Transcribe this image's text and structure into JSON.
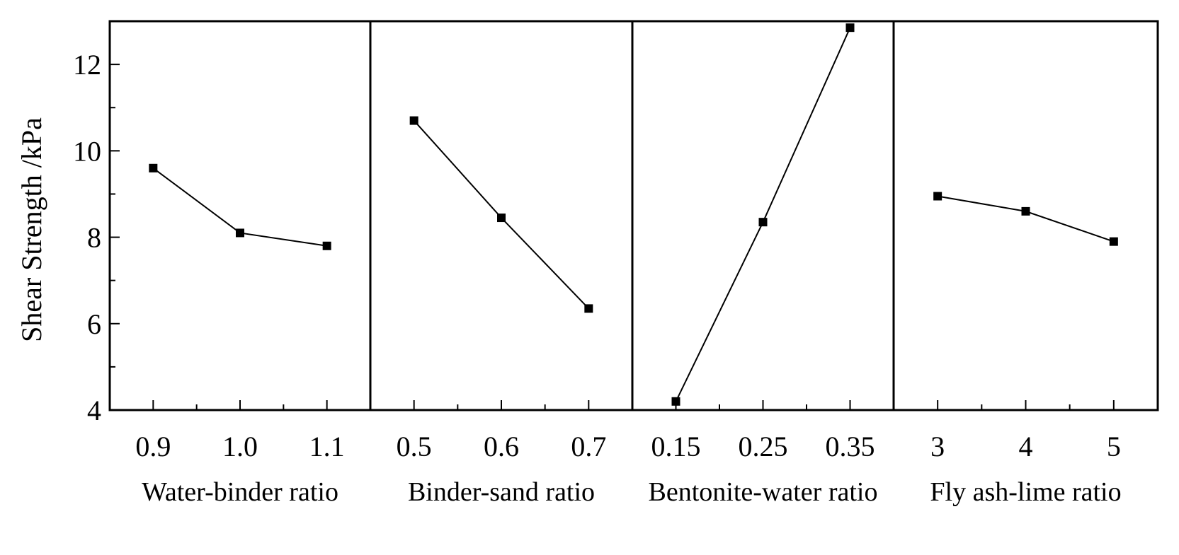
{
  "chart_data": {
    "type": "line",
    "ylabel": "Shear Strength /kPa",
    "ylim": [
      4,
      13
    ],
    "yticks": [
      4,
      6,
      8,
      10,
      12
    ],
    "grid": false,
    "panels": [
      {
        "xlabel": "Water-binder ratio",
        "categories": [
          "0.9",
          "1.0",
          "1.1"
        ],
        "values": [
          9.6,
          8.1,
          7.8
        ]
      },
      {
        "xlabel": "Binder-sand ratio",
        "categories": [
          "0.5",
          "0.6",
          "0.7"
        ],
        "values": [
          10.7,
          8.45,
          6.35
        ]
      },
      {
        "xlabel": "Bentonite-water ratio",
        "categories": [
          "0.15",
          "0.25",
          "0.35"
        ],
        "values": [
          4.2,
          8.35,
          12.85
        ]
      },
      {
        "xlabel": "Fly ash-lime ratio",
        "categories": [
          "3",
          "4",
          "5"
        ],
        "values": [
          8.95,
          8.6,
          7.9
        ]
      }
    ]
  }
}
